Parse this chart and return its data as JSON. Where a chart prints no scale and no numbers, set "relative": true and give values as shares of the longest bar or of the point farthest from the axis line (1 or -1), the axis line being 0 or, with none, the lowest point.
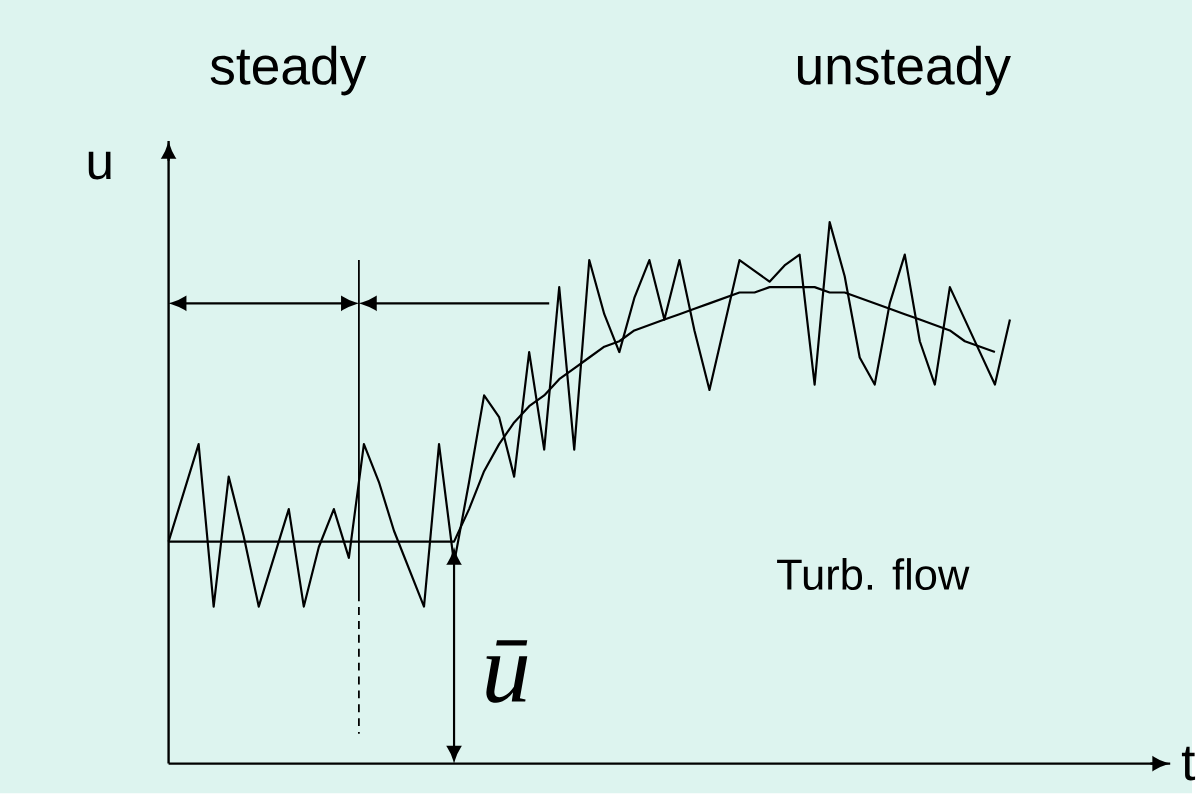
{
  "chart_data": {
    "type": "line",
    "relative": true,
    "xlabel": "t",
    "ylabel": "u",
    "marker": "none",
    "line_style": "solid",
    "annotations": [
      "steady",
      "unsteady",
      "Turb. flow",
      "ū"
    ],
    "categories": [
      null,
      null,
      null,
      null,
      null,
      null,
      null,
      null,
      null,
      null,
      null,
      null,
      null,
      null,
      null,
      null,
      null,
      null,
      null,
      null,
      null,
      null,
      null,
      null,
      null,
      null,
      null,
      null,
      null,
      null,
      null,
      null,
      null,
      null,
      null,
      null,
      null,
      null,
      null,
      null,
      null,
      null,
      null,
      null,
      null,
      null,
      null,
      null,
      null,
      null,
      null,
      null,
      null,
      null,
      null,
      null,
      null
    ],
    "series": [
      {
        "color": "#000000",
        "values": [
          0.41,
          0.5,
          0.59,
          0.29,
          0.53,
          0.42,
          0.29,
          0.38,
          0.47,
          0.29,
          0.4,
          0.47,
          0.38,
          0.59,
          0.52,
          0.43,
          0.36,
          0.29,
          0.59,
          0.37,
          0.52,
          0.68,
          0.64,
          0.53,
          0.76,
          0.58,
          0.88,
          0.58,
          0.93,
          0.83,
          0.76,
          0.86,
          0.93,
          0.82,
          0.93,
          0.8,
          0.69,
          0.81,
          0.93,
          0.91,
          0.89,
          0.92,
          0.94,
          0.7,
          1.0,
          0.9,
          0.75,
          0.7,
          0.85,
          0.94,
          0.78,
          0.7,
          0.88,
          0.82,
          0.76,
          0.7,
          0.82
        ]
      },
      {
        "color": "#000000",
        "values": [
          0.41,
          0.41,
          0.41,
          0.41,
          0.41,
          0.41,
          0.41,
          0.41,
          0.41,
          0.41,
          0.41,
          0.41,
          0.41,
          0.41,
          0.41,
          0.41,
          0.41,
          0.41,
          0.41,
          0.41,
          0.47,
          0.54,
          0.59,
          0.63,
          0.66,
          0.68,
          0.71,
          0.73,
          0.75,
          0.77,
          0.78,
          0.8,
          0.81,
          0.82,
          0.83,
          0.84,
          0.85,
          0.86,
          0.87,
          0.87,
          0.88,
          0.88,
          0.88,
          0.88,
          0.87,
          0.87,
          0.86,
          0.85,
          0.84,
          0.83,
          0.82,
          0.81,
          0.8,
          0.78,
          0.77,
          0.76,
          null
        ]
      }
    ]
  }
}
